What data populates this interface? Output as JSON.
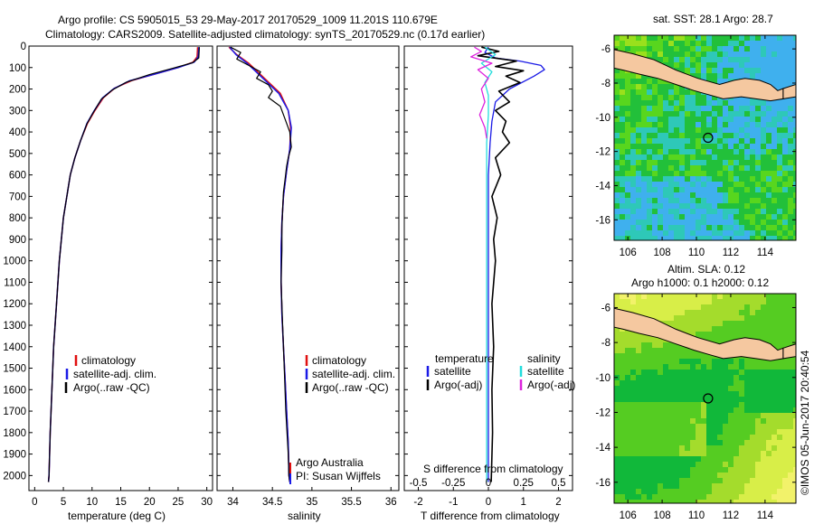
{
  "header": {
    "line1": "Argo profile: CS 5905015_53 29-May-2017 20170529_1009 11.201S 110.679E",
    "line2": "Climatology: CARS2009. Satellite-adjusted climatology: synTS_20170529.nc (0.17d earlier)"
  },
  "credit": "©IMOS 05-Jun-2017 20:40:54",
  "colors": {
    "climatology": "#e01010",
    "satellite": "#1a1ae6",
    "argo": "#000000",
    "cyan": "#22dddd",
    "magenta": "#dd22dd",
    "land": "#f5c8a0"
  },
  "chart_data": [
    {
      "type": "line",
      "id": "temperature",
      "xlabel": "temperature (deg C)",
      "ylabel": "",
      "xlim": [
        -1,
        31
      ],
      "ylim": [
        2070,
        0
      ],
      "xticks": [
        "0",
        "5",
        "10",
        "15",
        "20",
        "25",
        "30"
      ],
      "xtick_values": [
        0,
        5,
        10,
        15,
        20,
        25,
        30
      ],
      "yticks": [
        "0",
        "100",
        "200",
        "300",
        "400",
        "500",
        "600",
        "700",
        "800",
        "900",
        "1000",
        "1100",
        "1200",
        "1300",
        "1400",
        "1500",
        "1600",
        "1700",
        "1800",
        "1900",
        "2000"
      ],
      "ytick_values": [
        0,
        100,
        200,
        300,
        400,
        500,
        600,
        700,
        800,
        900,
        1000,
        1100,
        1200,
        1300,
        1400,
        1500,
        1600,
        1700,
        1800,
        1900,
        2000
      ],
      "legend": [
        "climatology",
        "satellite-adj. clim.",
        "Argo(..raw -QC)"
      ],
      "series": [
        {
          "name": "climatology",
          "color": "#e01010",
          "width": 1.5,
          "x": [
            28.4,
            28.3,
            27.6,
            25,
            21,
            17,
            14,
            12,
            10.5,
            9.2,
            8.0,
            7.0,
            6.2,
            5.6,
            5.0,
            4.3,
            3.8,
            3.3,
            3.0,
            2.7,
            2.5,
            2.4
          ],
          "y": [
            5,
            50,
            75,
            100,
            130,
            160,
            195,
            240,
            300,
            360,
            440,
            520,
            600,
            700,
            800,
            1000,
            1200,
            1400,
            1600,
            1800,
            2000,
            2030
          ]
        },
        {
          "name": "satellite-adj. clim.",
          "color": "#1a1ae6",
          "width": 1.5,
          "x": [
            28.6,
            28.5,
            27.8,
            25,
            21,
            16.5,
            13.8,
            11.8,
            10.4,
            9.1,
            8.0,
            7.0,
            6.2,
            5.6,
            5.0,
            4.3,
            3.8,
            3.3,
            3.0,
            2.7,
            2.5,
            2.4
          ],
          "y": [
            5,
            50,
            75,
            100,
            130,
            162,
            198,
            242,
            300,
            360,
            440,
            520,
            600,
            700,
            800,
            1000,
            1200,
            1400,
            1600,
            1800,
            2000,
            2030
          ]
        },
        {
          "name": "Argo(..raw -QC)",
          "color": "#000000",
          "width": 1.2,
          "x": [
            28.7,
            28.6,
            27.5,
            24,
            20,
            16,
            13.5,
            11.6,
            10.3,
            9.1,
            8.0,
            7.0,
            6.2,
            5.6,
            5.0,
            4.3,
            3.8,
            3.3,
            3.0,
            2.7,
            2.5,
            2.4
          ],
          "y": [
            5,
            55,
            78,
            104,
            133,
            168,
            205,
            248,
            305,
            362,
            440,
            520,
            600,
            700,
            800,
            1000,
            1200,
            1400,
            1600,
            1800,
            2000,
            2030
          ]
        }
      ]
    },
    {
      "type": "line",
      "id": "salinity",
      "xlabel": "salinity",
      "xlim": [
        33.8,
        36.1
      ],
      "ylim": [
        2070,
        0
      ],
      "xticks": [
        "34",
        "34.5",
        "35",
        "35.5",
        "36"
      ],
      "xtick_values": [
        34,
        34.5,
        35,
        35.5,
        36
      ],
      "legend": [
        "climatology",
        "satellite-adj. clim.",
        "Argo(..raw -QC)"
      ],
      "annotations": [
        "Argo Australia",
        "PI: Susan Wijffels"
      ],
      "series": [
        {
          "name": "climatology",
          "color": "#e01010",
          "width": 1.5,
          "x": [
            33.95,
            34.05,
            34.2,
            34.4,
            34.6,
            34.7,
            34.73,
            34.72,
            34.68,
            34.64,
            34.62,
            34.61,
            34.61,
            34.62,
            34.64,
            34.66,
            34.68,
            34.7,
            34.71,
            34.72
          ],
          "y": [
            5,
            40,
            80,
            150,
            220,
            300,
            380,
            480,
            580,
            700,
            820,
            950,
            1100,
            1250,
            1400,
            1550,
            1700,
            1850,
            2000,
            2030
          ]
        },
        {
          "name": "satellite-adj. clim.",
          "color": "#1a1ae6",
          "width": 1.5,
          "x": [
            33.96,
            34.04,
            34.18,
            34.38,
            34.58,
            34.7,
            34.74,
            34.72,
            34.68,
            34.64,
            34.62,
            34.61,
            34.61,
            34.62,
            34.64,
            34.66,
            34.68,
            34.7,
            34.71,
            34.72
          ],
          "y": [
            5,
            40,
            80,
            150,
            220,
            300,
            380,
            480,
            580,
            700,
            820,
            950,
            1100,
            1250,
            1400,
            1550,
            1700,
            1850,
            2000,
            2030
          ]
        },
        {
          "name": "Argo(..raw -QC)",
          "color": "#000000",
          "width": 1.2,
          "x": [
            33.97,
            34.1,
            34.05,
            34.2,
            34.35,
            34.3,
            34.45,
            34.5,
            34.45,
            34.6,
            34.65,
            34.72,
            34.74,
            34.7,
            34.68,
            34.66,
            34.64,
            34.63,
            34.62,
            34.62,
            34.61,
            34.63,
            34.65,
            34.67,
            34.7,
            34.71,
            34.72
          ],
          "y": [
            5,
            30,
            60,
            90,
            120,
            150,
            180,
            210,
            240,
            280,
            330,
            400,
            470,
            520,
            560,
            620,
            680,
            760,
            850,
            950,
            1100,
            1300,
            1500,
            1700,
            1900,
            2000,
            2030
          ]
        }
      ]
    },
    {
      "type": "line",
      "id": "difference",
      "xlabel": "T difference from climatology",
      "xlabel_top": "S difference from climatology",
      "xlim": [
        -2.4,
        2.4
      ],
      "ylim": [
        2070,
        0
      ],
      "xticks": [
        "-2",
        "-1",
        "0",
        "1",
        "2"
      ],
      "xtick_values": [
        -2,
        -1,
        0,
        1,
        2
      ],
      "sticks": [
        "-0.5",
        "-0.25",
        "0",
        "0.25",
        "0.5"
      ],
      "stick_values": [
        -2,
        -1,
        0,
        1,
        2
      ],
      "legend_left_title": "temperature",
      "legend_right_title": "salinity",
      "legend_left": [
        "satellite",
        "Argo(-adj)"
      ],
      "legend_right": [
        "satellite",
        "Argo(-adj)"
      ],
      "series": [
        {
          "name": "T satellite",
          "color": "#1a1ae6",
          "width": 1.3,
          "x": [
            0.0,
            -0.1,
            0.2,
            0.9,
            1.5,
            1.6,
            1.3,
            0.6,
            0.2,
            0.1,
            0.05,
            0.0,
            0.0,
            0.0,
            0.0,
            0.0
          ],
          "y": [
            5,
            30,
            55,
            70,
            90,
            110,
            140,
            200,
            260,
            350,
            450,
            600,
            900,
            1300,
            1700,
            2030
          ]
        },
        {
          "name": "T Argo(-adj)",
          "color": "#000000",
          "width": 1.6,
          "x": [
            -0.2,
            0.3,
            -0.3,
            0.8,
            0.2,
            1.0,
            0.5,
            0.9,
            0.3,
            0.6,
            0.2,
            0.5,
            0.4,
            0.6,
            0.2,
            0.35,
            0.1,
            0.25,
            0.15,
            0.2,
            0.1,
            0.15,
            0.1,
            0.12,
            0.08
          ],
          "y": [
            5,
            25,
            45,
            70,
            95,
            115,
            140,
            170,
            210,
            260,
            300,
            350,
            400,
            450,
            520,
            600,
            700,
            800,
            900,
            1000,
            1200,
            1400,
            1600,
            1800,
            2030
          ]
        },
        {
          "name": "S satellite",
          "color": "#22dddd",
          "width": 1.3,
          "x": [
            -0.1,
            0.2,
            -0.2,
            0.1,
            -0.1,
            0.0,
            0.0,
            -0.05,
            -0.05,
            -0.05,
            -0.05,
            -0.05
          ],
          "y": [
            5,
            40,
            80,
            120,
            170,
            230,
            320,
            450,
            700,
            1100,
            1600,
            2030
          ]
        },
        {
          "name": "S Argo(-adj)",
          "color": "#dd22dd",
          "width": 1.3,
          "x": [
            -0.4,
            -0.2,
            -0.5,
            0.1,
            -0.3,
            0.0,
            -0.2,
            -0.1,
            -0.25,
            -0.1,
            -0.05
          ],
          "y": [
            5,
            25,
            50,
            80,
            110,
            150,
            200,
            260,
            320,
            380,
            430
          ]
        }
      ]
    },
    {
      "type": "heatmap",
      "id": "sst-map",
      "title": "sat. SST: 28.1  Argo: 28.7",
      "xlim": [
        105.2,
        115.8
      ],
      "ylim": [
        -17.2,
        -5.2
      ],
      "xticks": [
        "106",
        "108",
        "110",
        "112",
        "114"
      ],
      "xtick_values": [
        106,
        108,
        110,
        112,
        114
      ],
      "yticks": [
        "-6",
        "-8",
        "-10",
        "-12",
        "-14",
        "-16"
      ],
      "ytick_values": [
        -6,
        -8,
        -10,
        -12,
        -14,
        -16
      ],
      "marker": {
        "lon": 110.679,
        "lat": -11.201
      }
    },
    {
      "type": "heatmap",
      "id": "sla-map",
      "title": "Altim. SLA: 0.12",
      "subtitle": "Argo h1000: 0.1 h2000: 0.12",
      "xlim": [
        105.2,
        115.8
      ],
      "ylim": [
        -17.2,
        -5.2
      ],
      "xticks": [
        "106",
        "108",
        "110",
        "112",
        "114"
      ],
      "xtick_values": [
        106,
        108,
        110,
        112,
        114
      ],
      "yticks": [
        "-6",
        "-8",
        "-10",
        "-12",
        "-14",
        "-16"
      ],
      "ytick_values": [
        -6,
        -8,
        -10,
        -12,
        -14,
        -16
      ],
      "marker": {
        "lon": 110.679,
        "lat": -11.201
      }
    }
  ]
}
